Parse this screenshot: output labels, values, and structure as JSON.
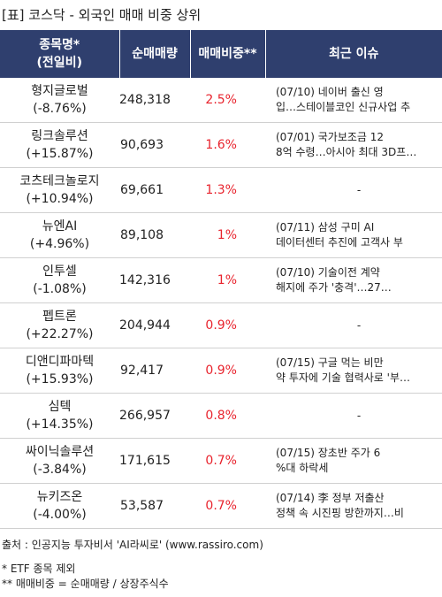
{
  "title": "[표] 코스닥 - 외국인 매매 비중 상위",
  "headers": {
    "name_line1": "종목명*",
    "name_line2": "(전일비)",
    "volume": "순매매량",
    "ratio": "매매비중**",
    "issue": "최근 이슈"
  },
  "rows": [
    {
      "name": "형지글로벌",
      "change": "(-8.76%)",
      "volume": "248,318",
      "ratio": "2.5%",
      "issue1": "(07/10) 네이버 출신 영",
      "issue2": "입…스테이블코인 신규사업 추"
    },
    {
      "name": "링크솔루션",
      "change": "(+15.87%)",
      "volume": "90,693",
      "ratio": "1.6%",
      "issue1": "(07/01) 국가보조금 12",
      "issue2": "8억 수령…아시아 최대 3D프…"
    },
    {
      "name": "코츠테크놀로지",
      "change": "(+10.94%)",
      "volume": "69,661",
      "ratio": "1.3%",
      "issue1": "-",
      "issue2": ""
    },
    {
      "name": "뉴엔AI",
      "change": "(+4.96%)",
      "volume": "89,108",
      "ratio": "1%",
      "issue1": "(07/11) 삼성 구미 AI",
      "issue2": "데이터센터 추진에 고객사 부"
    },
    {
      "name": "인투셀",
      "change": "(-1.08%)",
      "volume": "142,316",
      "ratio": "1%",
      "issue1": "(07/10) 기술이전 계약",
      "issue2": "해지에 주가 '충격'…27…"
    },
    {
      "name": "펩트론",
      "change": "(+22.27%)",
      "volume": "204,944",
      "ratio": "0.9%",
      "issue1": "-",
      "issue2": ""
    },
    {
      "name": "디앤디파마텍",
      "change": "(+15.93%)",
      "volume": "92,417",
      "ratio": "0.9%",
      "issue1": "(07/15) 구글 먹는 비만",
      "issue2": "약 투자에 기술 협력사로 '부…"
    },
    {
      "name": "심텍",
      "change": "(+14.35%)",
      "volume": "266,957",
      "ratio": "0.8%",
      "issue1": "-",
      "issue2": ""
    },
    {
      "name": "싸이닉솔루션",
      "change": "(-3.84%)",
      "volume": "171,615",
      "ratio": "0.7%",
      "issue1": "(07/15) 장초반 주가 6",
      "issue2": "%대 하락세"
    },
    {
      "name": "뉴키즈온",
      "change": "(-4.00%)",
      "volume": "53,587",
      "ratio": "0.7%",
      "issue1": "(07/14) 李 정부 저출산",
      "issue2": "정책 속 시진핑 방한까지…비"
    }
  ],
  "footer": {
    "source": "출처 : 인공지능 투자비서 'AI라씨로' (www.rassiro.com)",
    "note1": "* ETF 종목 제외",
    "note2": "** 매매비중 = 순매매량 / 상장주식수"
  },
  "colors": {
    "header_bg": "#2f3f6e",
    "ratio_text": "#e8232d"
  }
}
